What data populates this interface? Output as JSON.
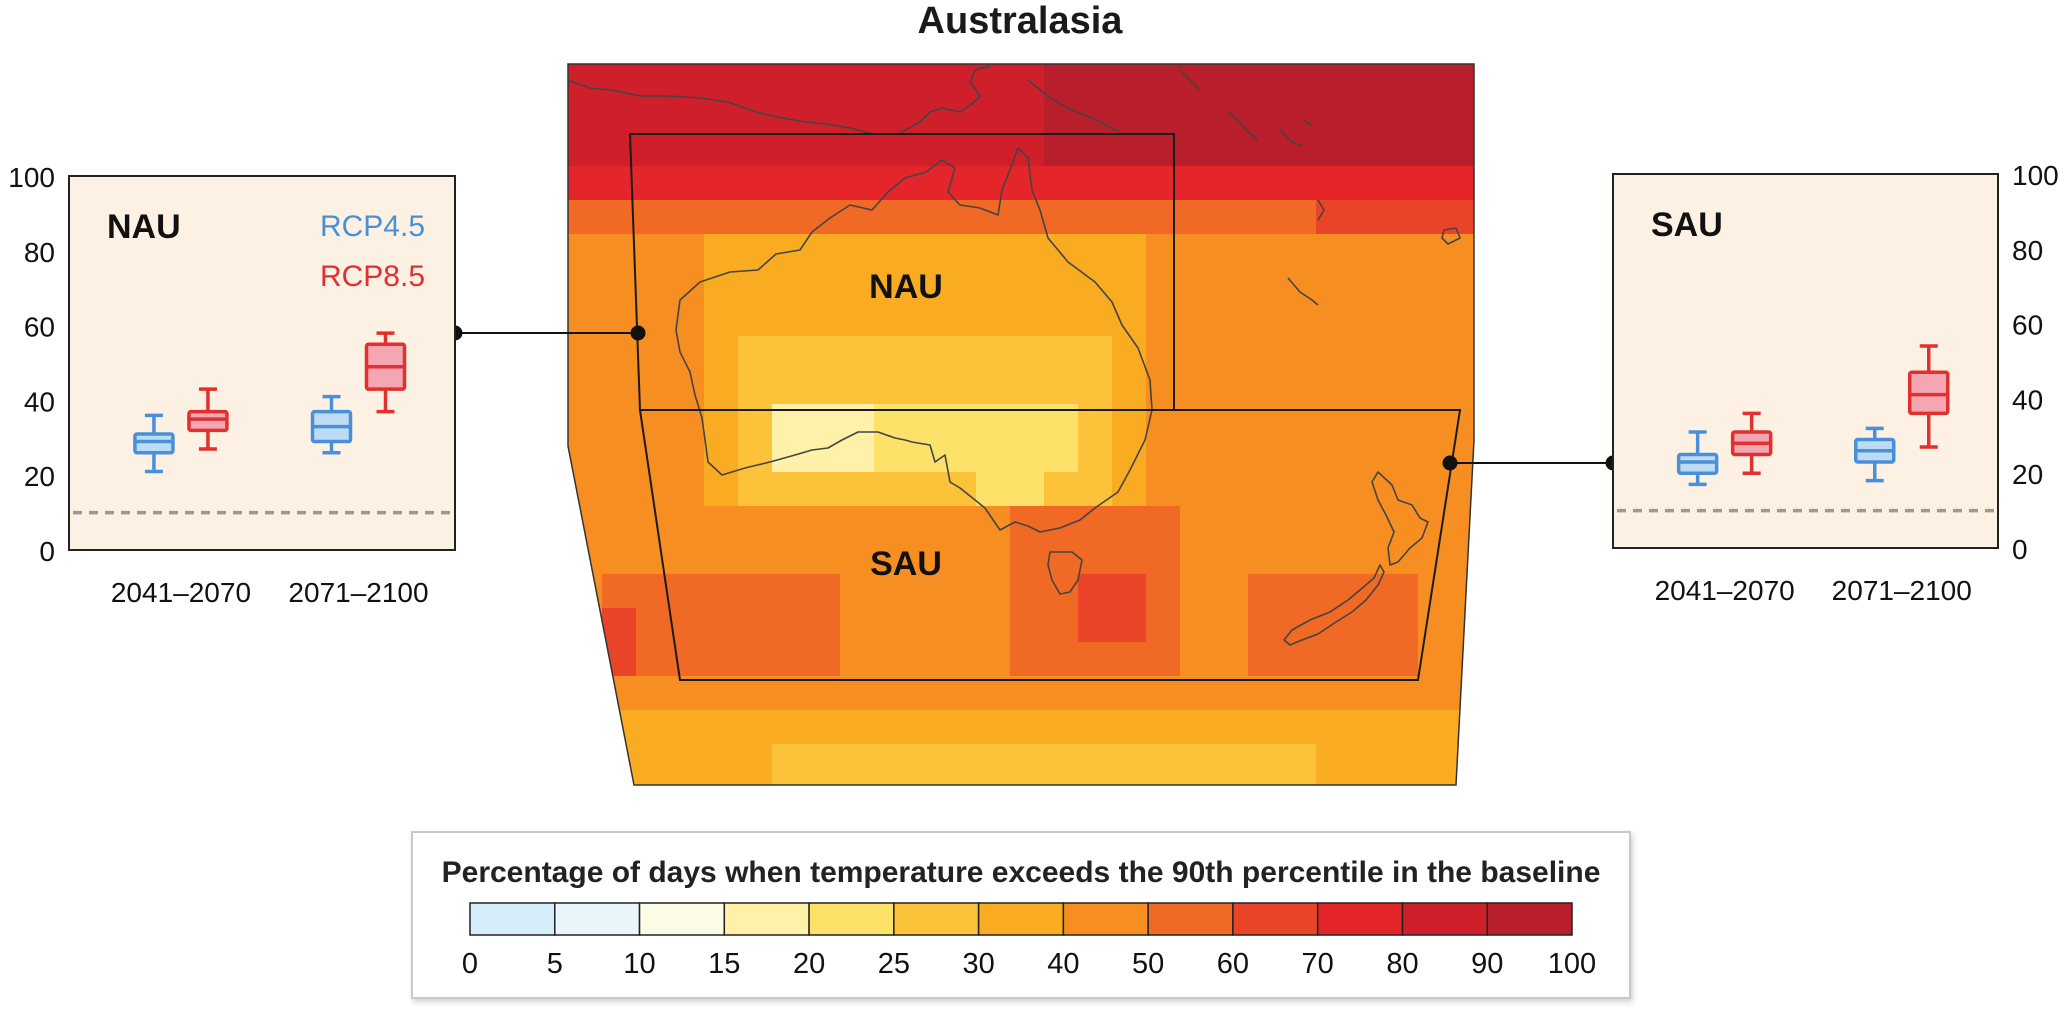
{
  "title": "Australasia",
  "colors": {
    "rcp45": "#4a90d9",
    "rcp45_fill": "#bcdcf3",
    "rcp85": "#e03030",
    "rcp85_fill": "#f4a6b3",
    "panel_bg": "#fdf1e3",
    "baseline": "#9a9a9a",
    "scale": [
      "#d6eef9",
      "#e8f5fb",
      "#fbfbe6",
      "#fff1a8",
      "#fde26a",
      "#fcc23a",
      "#f9ab22",
      "#f68e22",
      "#f06a25",
      "#ea4428",
      "#e4252a",
      "#cf1f2a",
      "#b81f2a"
    ]
  },
  "map": {
    "label_nau": "NAU",
    "label_sau": "SAU"
  },
  "legend": {
    "title": "Percentage of days when temperature exceeds the 90th percentile in the baseline",
    "ticks": [
      "0",
      "5",
      "10",
      "15",
      "20",
      "25",
      "30",
      "40",
      "50",
      "60",
      "70",
      "80",
      "90",
      "100"
    ]
  },
  "chart_data": [
    {
      "type": "box",
      "region": "NAU",
      "title": "NAU",
      "categories": [
        "2041–2070",
        "2071–2100"
      ],
      "ylim": [
        0,
        100
      ],
      "yticks": [
        "0",
        "20",
        "40",
        "60",
        "80",
        "100"
      ],
      "baseline": 10,
      "series": [
        {
          "name": "RCP4.5",
          "boxes": [
            {
              "min": 21,
              "q1": 26,
              "median": 29,
              "q3": 31,
              "max": 36
            },
            {
              "min": 26,
              "q1": 29,
              "median": 33,
              "q3": 37,
              "max": 41
            }
          ]
        },
        {
          "name": "RCP8.5",
          "boxes": [
            {
              "min": 27,
              "q1": 32,
              "median": 35,
              "q3": 37,
              "max": 43
            },
            {
              "min": 37,
              "q1": 43,
              "median": 49,
              "q3": 55,
              "max": 58
            }
          ]
        }
      ]
    },
    {
      "type": "box",
      "region": "SAU",
      "title": "SAU",
      "categories": [
        "2041–2070",
        "2071–2100"
      ],
      "ylim": [
        0,
        100
      ],
      "yticks": [
        "0",
        "20",
        "40",
        "60",
        "80",
        "100"
      ],
      "baseline": 10,
      "series": [
        {
          "name": "RCP4.5",
          "boxes": [
            {
              "min": 17,
              "q1": 20,
              "median": 23,
              "q3": 25,
              "max": 31
            },
            {
              "min": 18,
              "q1": 23,
              "median": 26,
              "q3": 29,
              "max": 32
            }
          ]
        },
        {
          "name": "RCP8.5",
          "boxes": [
            {
              "min": 20,
              "q1": 25,
              "median": 28,
              "q3": 31,
              "max": 36
            },
            {
              "min": 27,
              "q1": 36,
              "median": 41,
              "q3": 47,
              "max": 54
            }
          ]
        }
      ]
    }
  ]
}
